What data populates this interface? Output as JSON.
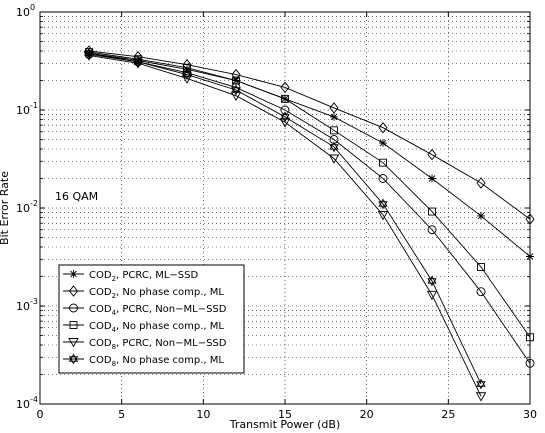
{
  "chart_data": {
    "type": "line",
    "title": "",
    "xlabel": "Transmit Power (dB)",
    "ylabel": "Bit Error Rate",
    "xlim": [
      0,
      30
    ],
    "ylim": [
      0.0001,
      1
    ],
    "yscale": "log",
    "grid": true,
    "legend_position": "bottom-left",
    "x_ticks": [
      0,
      5,
      10,
      15,
      20,
      25,
      30
    ],
    "y_tick_bases": [
      "10",
      "10",
      "10",
      "10",
      "10"
    ],
    "y_tick_exponents": [
      "-4",
      "-3",
      "-2",
      "-1",
      "0"
    ],
    "y_tick_values": [
      0.0001,
      0.001,
      0.01,
      0.1,
      1
    ],
    "annotation": "16 QAM",
    "series": [
      {
        "legend_main": "COD",
        "legend_sub": "2",
        "legend_rest": ", PCRC, ML−SSD",
        "marker": "asterisk",
        "x": [
          3,
          6,
          9,
          12,
          15,
          18,
          21,
          24,
          27,
          30
        ],
        "y": [
          0.38,
          0.32,
          0.26,
          0.2,
          0.13,
          0.085,
          0.046,
          0.02,
          0.0083,
          0.0032
        ]
      },
      {
        "legend_main": "COD",
        "legend_sub": "2",
        "legend_rest": ", No phase comp., ML",
        "marker": "diamond",
        "x": [
          3,
          6,
          9,
          12,
          15,
          18,
          21,
          24,
          27,
          30
        ],
        "y": [
          0.4,
          0.35,
          0.29,
          0.23,
          0.17,
          0.105,
          0.066,
          0.035,
          0.018,
          0.0077
        ]
      },
      {
        "legend_main": "COD",
        "legend_sub": "4",
        "legend_rest": ", PCRC, Non−ML−SSD",
        "marker": "circle",
        "x": [
          3,
          6,
          9,
          12,
          15,
          18,
          21,
          24,
          27,
          30
        ],
        "y": [
          0.37,
          0.31,
          0.24,
          0.17,
          0.1,
          0.05,
          0.02,
          0.006,
          0.0014,
          0.00026
        ]
      },
      {
        "legend_main": "COD",
        "legend_sub": "4",
        "legend_rest": ", No phase comp., ML",
        "marker": "square",
        "x": [
          3,
          6,
          9,
          12,
          15,
          18,
          21,
          24,
          27,
          30
        ],
        "y": [
          0.39,
          0.33,
          0.27,
          0.2,
          0.13,
          0.062,
          0.029,
          0.0092,
          0.0025,
          0.00048
        ]
      },
      {
        "legend_main": "COD",
        "legend_sub": "8",
        "legend_rest": ", PCRC, Non−ML−SSD",
        "marker": "triangle-down",
        "x": [
          3,
          6,
          9,
          12,
          15,
          18,
          21,
          24,
          27
        ],
        "y": [
          0.36,
          0.3,
          0.21,
          0.14,
          0.075,
          0.032,
          0.0085,
          0.0013,
          0.00012
        ]
      },
      {
        "legend_main": "COD",
        "legend_sub": "8",
        "legend_rest": ", No phase comp., ML",
        "marker": "hexagram",
        "x": [
          3,
          6,
          9,
          12,
          15,
          18,
          21,
          24,
          27
        ],
        "y": [
          0.38,
          0.31,
          0.23,
          0.16,
          0.085,
          0.042,
          0.011,
          0.0018,
          0.00016
        ]
      }
    ]
  }
}
